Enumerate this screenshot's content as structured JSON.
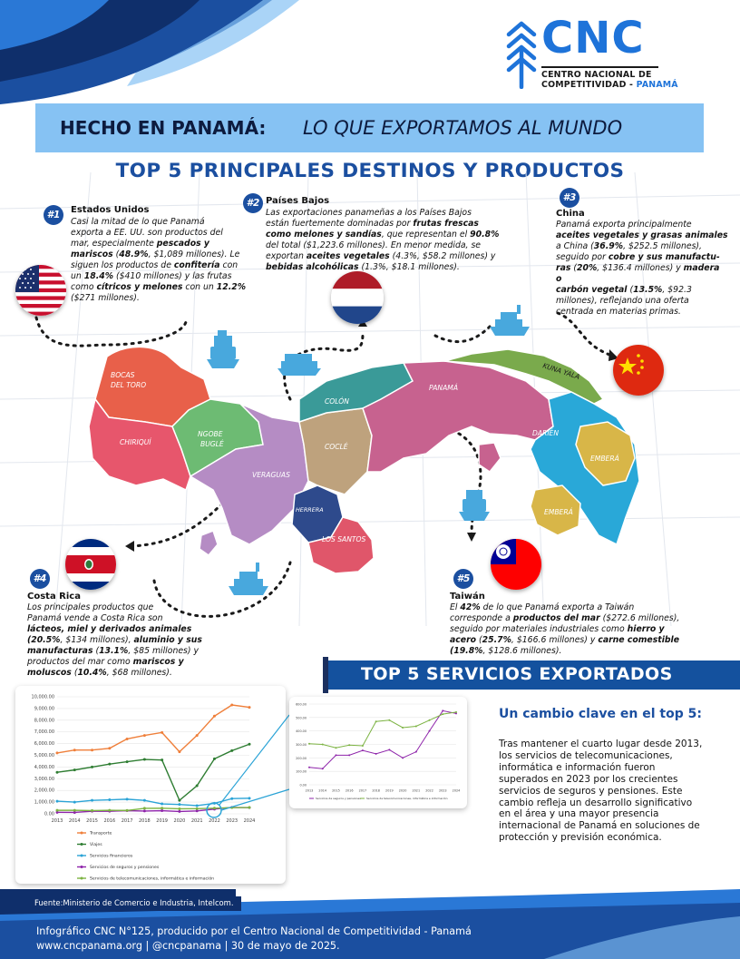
{
  "colors": {
    "primary_blue": "#1b4fa0",
    "light_blue": "#86c2f3",
    "dark_navy": "#0f2f6b",
    "logo_blue": "#1e73d9"
  },
  "logo": {
    "text": "CNC",
    "line1": "CENTRO NACIONAL DE",
    "line2_prefix": "COMPETITIVIDAD - ",
    "line2_accent": "PANAMÁ"
  },
  "header": {
    "title_bold": "HECHO EN PANAMÁ:",
    "title_italic": "LO QUE EXPORTAMOS AL MUNDO"
  },
  "section_title": "TOP 5 PRINCIPALES DESTINOS Y PRODUCTOS",
  "destinations": [
    {
      "rank": "#1",
      "name": "Estados Unidos",
      "text_html": "Casi la mitad de lo que Panamá<br>exporta a EE. UU. son productos del<br>mar, especialmente <b>pescados y<br>mariscos</b> (<b>48.9%</b>, $1,089 millones). Le<br>siguen los productos de <b>confitería</b> con<br>un <b>18.4%</b> ($410 millones) y las frutas<br>como <b>cítricos y melones</b> con un <b>12.2%</b><br>($271 millones)."
    },
    {
      "rank": "#2",
      "name": "Países Bajos",
      "text_html": "Las exportaciones panameñas a los Países Bajos<br>están fuertemente dominadas por <b>frutas frescas<br>como melones y sandías</b>, que representan el <b>90.8%</b><br>del total ($1,223.6 millones). En menor medida, se<br>exportan <b>aceites vegetales</b> (4.3%, $58.2 millones) y<br><b>bebidas alcohólicas</b> (1.3%, $18.1 millones)."
    },
    {
      "rank": "#3",
      "name": "China",
      "text_html": "Panamá exporta principalmente<br><b>aceites vegetales y grasas animales</b><br>a China (<b>36.9%</b>, $252.5 millones),<br>seguido por <b>cobre y sus manufactu-<br>ras</b> (<b>20%</b>, $136.4 millones) y <b>madera o<br>carbón vegetal</b> (<b>13.5%</b>, $92.3<br>millones), reflejando una oferta<br>centrada en materias primas."
    },
    {
      "rank": "#4",
      "name": "Costa Rica",
      "text_html": "Los principales productos que<br>Panamá vende a Costa Rica son<br><b>lácteos, miel y derivados animales<br>(20.5%</b>, $134 millones), <b>aluminio y sus<br>manufacturas</b> (<b>13.1%</b>, $85 millones) y<br>productos del mar como <b>mariscos y<br>moluscos</b> (<b>10.4%</b>, $68 millones)."
    },
    {
      "rank": "#5",
      "name": "Taiwán",
      "text_html": "El <b>42%</b> de lo que Panamá exporta a Taiwán<br>corresponde a <b>productos del mar</b> ($272.6 millones),<br>seguido por materiales industriales como <b>hierro y<br>acero</b> (<b>25.7%</b>, $166.6 millones) y <b>carne comestible<br>(19.8%</b>, $128.6 millones)."
    }
  ],
  "map_labels": {
    "bocas": [
      "BOCAS",
      "DEL TORO"
    ],
    "chiriqui": "CHIRIQUÍ",
    "ngobe": [
      "NGOBE",
      "BUGLÉ"
    ],
    "veraguas": "VERAGUAS",
    "herrera": "HERRERA",
    "los_santos": "LOS SANTOS",
    "cocle": "COCLÉ",
    "colon": "COLÓN",
    "panama": "PANAMÁ",
    "kuna_yala": "KUNA YALA",
    "darien": "DARIÉN",
    "embera1": "EMBERÁ",
    "embera2": "EMBERÁ"
  },
  "services_title": "TOP 5 SERVICIOS EXPORTADOS",
  "chart_data": [
    {
      "type": "line",
      "x": [
        "2013",
        "2014",
        "2015",
        "2016",
        "2017",
        "2018",
        "2019",
        "2020",
        "2021",
        "2022",
        "2023",
        "2024"
      ],
      "ylim": [
        0,
        10000
      ],
      "yticks": [
        "0.00",
        "1,000.00",
        "2,000.00",
        "3,000.00",
        "4,000.00",
        "5,000.00",
        "6,000.00",
        "7,000.00",
        "8,000.00",
        "9,000.00",
        "10,000.00"
      ],
      "legend_position": "bottom-left",
      "series": [
        {
          "name": "Transporte",
          "color": "#ef7f3a",
          "values": [
            5200,
            5450,
            5450,
            5600,
            6400,
            6700,
            6950,
            5300,
            6700,
            8350,
            9300,
            9100
          ]
        },
        {
          "name": "Viajes",
          "color": "#2e7d32",
          "values": [
            3550,
            3750,
            4000,
            4250,
            4450,
            4650,
            4600,
            1150,
            2400,
            4700,
            5400,
            5950
          ]
        },
        {
          "name": "Servicios financieros",
          "color": "#2aa3d6",
          "values": [
            1080,
            1000,
            1150,
            1200,
            1250,
            1150,
            850,
            800,
            700,
            900,
            1300,
            1330
          ]
        },
        {
          "name": "Servicios de seguros y pensiones",
          "color": "#8e24aa",
          "values": [
            130,
            120,
            220,
            220,
            270,
            240,
            270,
            200,
            250,
            400,
            550,
            530
          ]
        },
        {
          "name": "Servicios de telecomunicaciones, informática e información",
          "color": "#7cb342",
          "values": [
            300,
            300,
            280,
            300,
            290,
            470,
            480,
            430,
            440,
            480,
            530,
            540
          ]
        }
      ]
    },
    {
      "type": "line",
      "x": [
        "2013",
        "2014",
        "2015",
        "2016",
        "2017",
        "2018",
        "2019",
        "2020",
        "2021",
        "2022",
        "2023",
        "2024"
      ],
      "ylim": [
        0,
        600
      ],
      "yticks": [
        "0.00",
        "100.00",
        "200.00",
        "300.00",
        "400.00",
        "500.00",
        "600.00"
      ],
      "legend_position": "bottom",
      "series": [
        {
          "name": "Servicios de seguros y pensiones",
          "color": "#8e24aa",
          "values": [
            130,
            120,
            220,
            220,
            255,
            230,
            260,
            200,
            245,
            400,
            550,
            530
          ]
        },
        {
          "name": "Servicios de telecomunicaciones, informática e información",
          "color": "#7cb342",
          "values": [
            305,
            300,
            275,
            295,
            290,
            470,
            480,
            425,
            435,
            480,
            525,
            540
          ]
        }
      ]
    }
  ],
  "change": {
    "title": "Un cambio clave en el top 5:",
    "text": "Tras mantener el cuarto lugar desde 2013, los servicios de telecomunicaciones, informática e información fueron superados en 2023 por los crecientes servicios de seguros y pensiones. Este cambio refleja un desarrollo significativo en el área y una mayor presencia internacional de Panamá en soluciones de protección y previsión económica."
  },
  "source": "Fuente:Ministerio de Comercio e Industria, Intelcom.",
  "footer": {
    "line1": "Infográfico CNC N°125, producido por el Centro Nacional de Competitividad - Panamá",
    "line2": "www.cncpanama.org | @cncpanama | 30 de mayo de 2025."
  }
}
